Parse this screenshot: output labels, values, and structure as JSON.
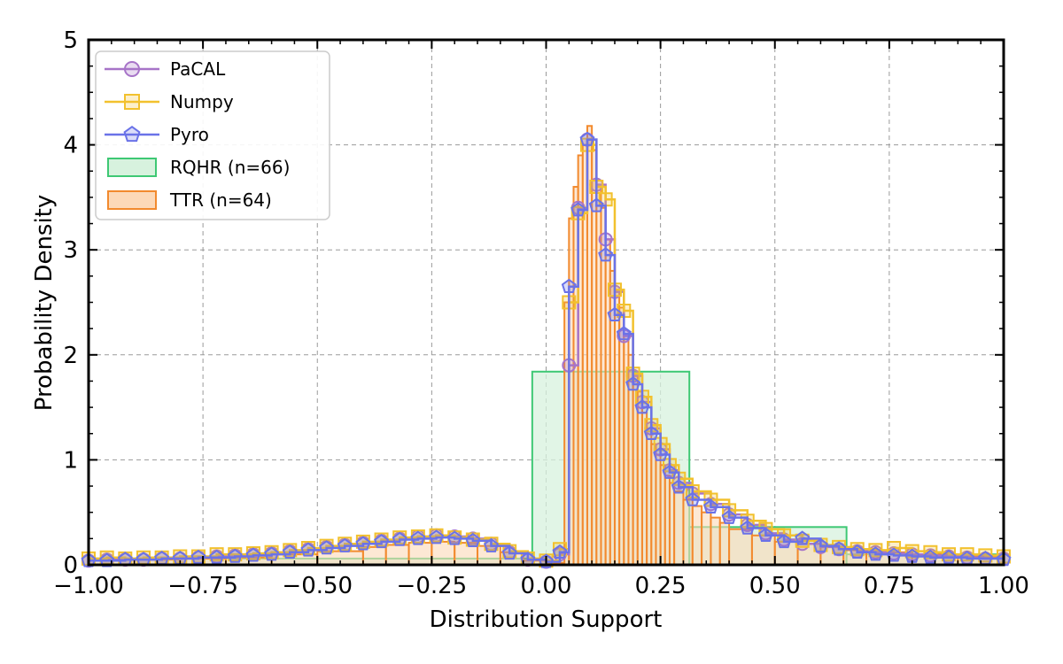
{
  "chart_data": {
    "type": "line",
    "title": "",
    "xlabel": "Distribution Support",
    "ylabel": "Probability Density",
    "xlim": [
      -1.0,
      1.0
    ],
    "ylim": [
      0,
      5
    ],
    "grid": true,
    "legend_position": "top-left",
    "x_ticks": [
      -1.0,
      -0.75,
      -0.5,
      -0.25,
      0.0,
      0.25,
      0.5,
      0.75,
      1.0
    ],
    "x_tick_labels": [
      "−1.00",
      "−0.75",
      "−0.50",
      "−0.25",
      "0.00",
      "0.25",
      "0.50",
      "0.75",
      "1.00"
    ],
    "y_ticks": [
      0,
      1,
      2,
      3,
      4,
      5
    ],
    "y_tick_labels": [
      "0",
      "1",
      "2",
      "3",
      "4",
      "5"
    ],
    "colors": {
      "pacal": "#a774c8",
      "numpy": "#f2c12e",
      "pyro": "#6a72e8",
      "rqhr": "#3ec874",
      "rqhr_fill": "#d7f2de",
      "ttr": "#f28a2e",
      "ttr_fill": "#fcd9b8",
      "grid": "#9a9a9a"
    },
    "legend": [
      {
        "label": "PaCAL",
        "kind": "line-circle",
        "color_key": "pacal"
      },
      {
        "label": "Numpy",
        "kind": "line-square",
        "color_key": "numpy"
      },
      {
        "label": "Pyro",
        "kind": "line-pentagon",
        "color_key": "pyro"
      },
      {
        "label": "RQHR (n=66)",
        "kind": "patch",
        "color_key": "rqhr"
      },
      {
        "label": "TTR (n=64)",
        "kind": "patch",
        "color_key": "ttr"
      }
    ],
    "series": [
      {
        "name": "PaCAL",
        "marker": "circle",
        "x": [
          -1.0,
          -0.96,
          -0.92,
          -0.88,
          -0.84,
          -0.8,
          -0.76,
          -0.72,
          -0.68,
          -0.64,
          -0.6,
          -0.56,
          -0.52,
          -0.48,
          -0.44,
          -0.4,
          -0.36,
          -0.32,
          -0.28,
          -0.24,
          -0.2,
          -0.16,
          -0.12,
          -0.08,
          -0.04,
          0.0,
          0.03,
          0.05,
          0.07,
          0.09,
          0.11,
          0.13,
          0.15,
          0.17,
          0.19,
          0.21,
          0.23,
          0.25,
          0.27,
          0.29,
          0.32,
          0.36,
          0.4,
          0.44,
          0.48,
          0.52,
          0.56,
          0.6,
          0.64,
          0.68,
          0.72,
          0.76,
          0.8,
          0.84,
          0.88,
          0.92,
          0.96,
          1.0
        ],
        "y": [
          0.04,
          0.05,
          0.05,
          0.05,
          0.06,
          0.06,
          0.07,
          0.08,
          0.09,
          0.1,
          0.11,
          0.13,
          0.15,
          0.17,
          0.19,
          0.21,
          0.23,
          0.25,
          0.27,
          0.28,
          0.27,
          0.25,
          0.2,
          0.12,
          0.05,
          0.03,
          0.1,
          1.9,
          3.4,
          4.05,
          3.62,
          3.1,
          2.6,
          2.18,
          1.8,
          1.55,
          1.3,
          1.1,
          0.9,
          0.78,
          0.68,
          0.58,
          0.48,
          0.38,
          0.3,
          0.24,
          0.2,
          0.17,
          0.15,
          0.13,
          0.12,
          0.11,
          0.1,
          0.09,
          0.08,
          0.07,
          0.06,
          0.06
        ]
      },
      {
        "name": "Numpy",
        "marker": "square",
        "x": [
          -1.0,
          -0.96,
          -0.92,
          -0.88,
          -0.84,
          -0.8,
          -0.76,
          -0.72,
          -0.68,
          -0.64,
          -0.6,
          -0.56,
          -0.52,
          -0.48,
          -0.44,
          -0.4,
          -0.36,
          -0.32,
          -0.28,
          -0.24,
          -0.2,
          -0.16,
          -0.12,
          -0.08,
          -0.04,
          0.0,
          0.03,
          0.05,
          0.07,
          0.09,
          0.11,
          0.13,
          0.15,
          0.17,
          0.19,
          0.21,
          0.23,
          0.25,
          0.27,
          0.29,
          0.32,
          0.36,
          0.4,
          0.44,
          0.48,
          0.52,
          0.56,
          0.6,
          0.64,
          0.68,
          0.72,
          0.76,
          0.8,
          0.84,
          0.88,
          0.92,
          0.96,
          1.0
        ],
        "y": [
          0.06,
          0.07,
          0.06,
          0.07,
          0.07,
          0.08,
          0.08,
          0.1,
          0.1,
          0.11,
          0.12,
          0.14,
          0.16,
          0.18,
          0.2,
          0.22,
          0.24,
          0.26,
          0.27,
          0.28,
          0.26,
          0.24,
          0.2,
          0.13,
          0.06,
          0.04,
          0.15,
          2.5,
          3.35,
          4.0,
          3.6,
          3.48,
          2.62,
          2.42,
          1.82,
          1.6,
          1.33,
          1.15,
          0.95,
          0.82,
          0.7,
          0.62,
          0.52,
          0.42,
          0.34,
          0.28,
          0.23,
          0.19,
          0.17,
          0.15,
          0.14,
          0.16,
          0.13,
          0.12,
          0.1,
          0.1,
          0.09,
          0.08
        ]
      },
      {
        "name": "Pyro",
        "marker": "pentagon",
        "x": [
          -1.0,
          -0.96,
          -0.92,
          -0.88,
          -0.84,
          -0.8,
          -0.76,
          -0.72,
          -0.68,
          -0.64,
          -0.6,
          -0.56,
          -0.52,
          -0.48,
          -0.44,
          -0.4,
          -0.36,
          -0.32,
          -0.28,
          -0.24,
          -0.2,
          -0.16,
          -0.12,
          -0.08,
          -0.04,
          0.0,
          0.03,
          0.05,
          0.07,
          0.09,
          0.11,
          0.13,
          0.15,
          0.17,
          0.19,
          0.21,
          0.23,
          0.25,
          0.27,
          0.29,
          0.32,
          0.36,
          0.4,
          0.44,
          0.48,
          0.52,
          0.56,
          0.6,
          0.64,
          0.68,
          0.72,
          0.76,
          0.8,
          0.84,
          0.88,
          0.92,
          0.96,
          1.0
        ],
        "y": [
          0.04,
          0.04,
          0.05,
          0.05,
          0.06,
          0.06,
          0.07,
          0.07,
          0.08,
          0.09,
          0.1,
          0.12,
          0.14,
          0.16,
          0.18,
          0.2,
          0.22,
          0.24,
          0.25,
          0.26,
          0.25,
          0.23,
          0.18,
          0.11,
          0.05,
          0.03,
          0.12,
          2.65,
          3.38,
          4.05,
          3.42,
          2.95,
          2.38,
          2.2,
          1.72,
          1.5,
          1.25,
          1.05,
          0.88,
          0.74,
          0.62,
          0.55,
          0.45,
          0.35,
          0.28,
          0.22,
          0.25,
          0.18,
          0.15,
          0.12,
          0.1,
          0.09,
          0.08,
          0.07,
          0.07,
          0.06,
          0.06,
          0.05
        ]
      }
    ],
    "histograms": [
      {
        "name": "RQHR (n=66)",
        "bin_edges": [
          -1.0,
          -0.0303,
          0.3131,
          0.6566,
          1.0
        ],
        "density": [
          0.06,
          1.84,
          0.36,
          0.1
        ]
      },
      {
        "name": "TTR (n=64)",
        "bin_edges": [
          -1.0,
          -0.9,
          -0.8,
          -0.7,
          -0.6,
          -0.5,
          -0.4,
          -0.35,
          -0.3,
          -0.25,
          -0.2,
          -0.15,
          -0.1,
          -0.05,
          0.0,
          0.04,
          0.05,
          0.06,
          0.07,
          0.08,
          0.09,
          0.1,
          0.11,
          0.12,
          0.13,
          0.14,
          0.15,
          0.16,
          0.17,
          0.18,
          0.19,
          0.2,
          0.21,
          0.22,
          0.23,
          0.24,
          0.25,
          0.26,
          0.27,
          0.28,
          0.3,
          0.32,
          0.34,
          0.36,
          0.38,
          0.4,
          0.45,
          0.5,
          0.55,
          0.6,
          0.65,
          0.7,
          0.8,
          0.9,
          1.0
        ],
        "density": [
          0.05,
          0.05,
          0.06,
          0.07,
          0.1,
          0.13,
          0.17,
          0.19,
          0.21,
          0.22,
          0.21,
          0.18,
          0.12,
          0.04,
          0.02,
          2.5,
          3.3,
          3.6,
          3.9,
          4.0,
          4.18,
          3.95,
          3.6,
          3.4,
          3.1,
          2.8,
          2.6,
          2.45,
          2.2,
          2.0,
          1.8,
          1.65,
          1.45,
          1.3,
          1.15,
          1.05,
          0.95,
          0.85,
          0.78,
          0.7,
          0.62,
          0.56,
          0.5,
          0.45,
          0.4,
          0.34,
          0.28,
          0.22,
          0.2,
          0.17,
          0.14,
          0.12,
          0.1,
          0.08
        ]
      }
    ]
  }
}
